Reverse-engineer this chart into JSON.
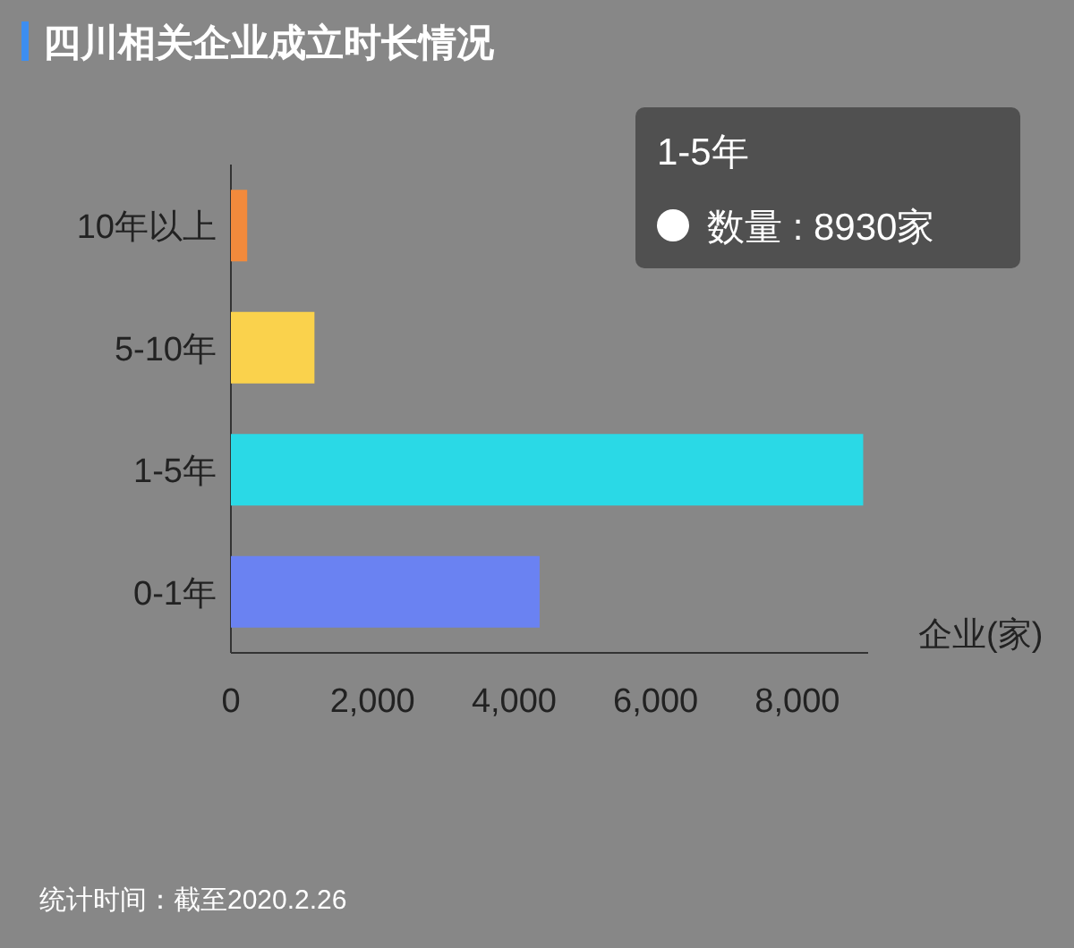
{
  "chart_data": {
    "type": "bar",
    "orientation": "horizontal",
    "title": "四川相关企业成立时长情况",
    "xlabel": "企业(家)",
    "categories": [
      "10年以上",
      "5-10年",
      "1-5年",
      "0-1年"
    ],
    "values": [
      230,
      1180,
      8930,
      4360
    ],
    "colors": [
      "#f28a3c",
      "#fad24c",
      "#2ad9e6",
      "#6a82f2"
    ],
    "xlim": [
      0,
      9000
    ],
    "xticks": [
      0,
      {
        "value": 2000,
        "label": "2,000"
      },
      {
        "value": 4000,
        "label": "4,000"
      },
      {
        "value": 6000,
        "label": "6,000"
      },
      {
        "value": 8000,
        "label": "8,000"
      }
    ],
    "annotations": [
      "1-5年",
      "数量 : 8930家",
      "统计时间：截至2020.2.26"
    ]
  }
}
